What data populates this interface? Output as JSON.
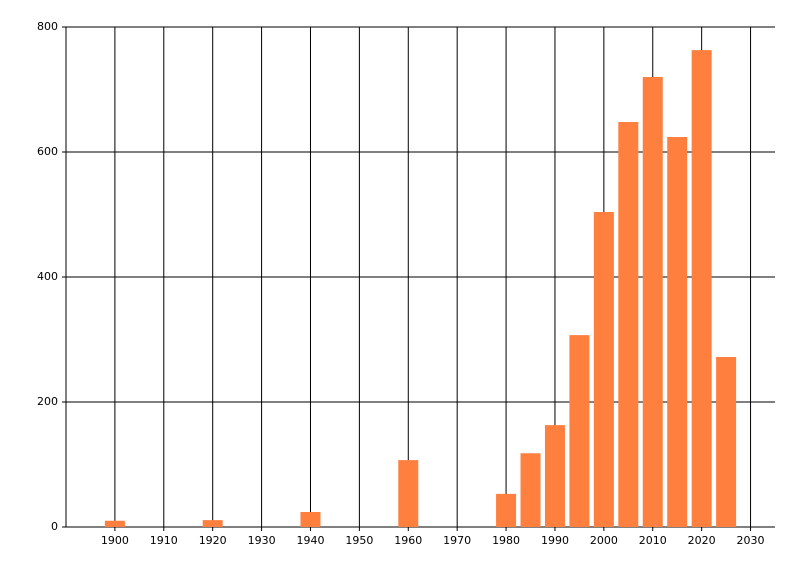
{
  "chart_data": {
    "type": "bar",
    "x": [
      1900,
      1920,
      1940,
      1960,
      1980,
      1985,
      1990,
      1995,
      2000,
      2005,
      2010,
      2015,
      2020,
      2025
    ],
    "values": [
      10,
      11,
      24,
      107,
      53,
      118,
      163,
      307,
      504,
      648,
      720,
      624,
      763,
      272
    ],
    "color": "#ff7f3f",
    "xlim": [
      1890,
      2035
    ],
    "xticks": [
      1900,
      1910,
      1920,
      1930,
      1940,
      1950,
      1960,
      1970,
      1980,
      1990,
      2000,
      2010,
      2020,
      2030
    ],
    "ylim": [
      0,
      800
    ],
    "yticks": [
      0,
      200,
      400,
      600,
      800
    ],
    "grid": true
  }
}
